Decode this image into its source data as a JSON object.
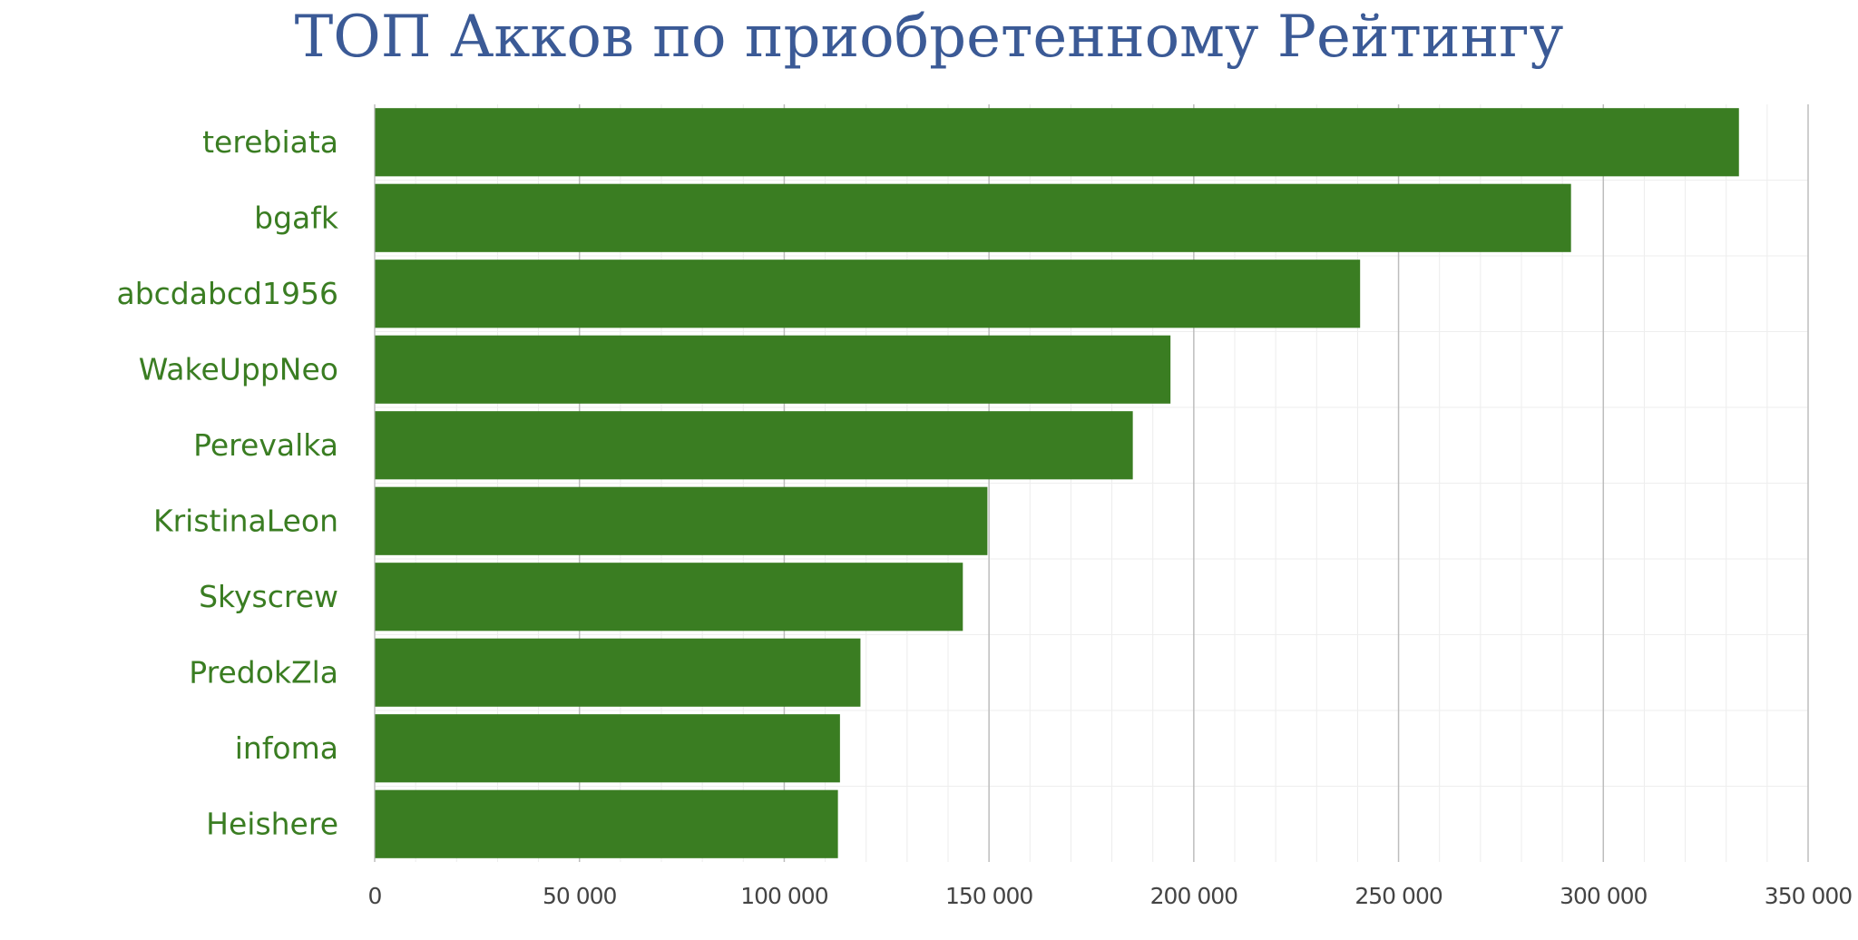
{
  "chart_data": {
    "type": "bar",
    "orientation": "horizontal",
    "title": "ТОП Акков по приобретенному Рейтингу",
    "xlabel": "",
    "ylabel": "",
    "categories": [
      "terebiata",
      "bgafk",
      "abcdabcd1956",
      "WakeUppNeo",
      "Perevalka",
      "KristinaLeon",
      "Skyscrew",
      "PredokZla",
      "infoma",
      "Heishere"
    ],
    "values": [
      333000,
      292000,
      240500,
      194200,
      185000,
      149500,
      143500,
      118500,
      113500,
      113000
    ],
    "xlim": [
      0,
      350000
    ],
    "ticks": [
      0,
      50000,
      100000,
      150000,
      200000,
      250000,
      300000,
      350000
    ],
    "tick_labels": [
      "0",
      "50 000",
      "100 000",
      "150 000",
      "200 000",
      "250 000",
      "300 000",
      "350 000"
    ],
    "grid": true,
    "legend": "none",
    "colors": {
      "bar": "#3a7d22",
      "category_labels": "#3a7d22",
      "title": "#3b5a96"
    }
  }
}
